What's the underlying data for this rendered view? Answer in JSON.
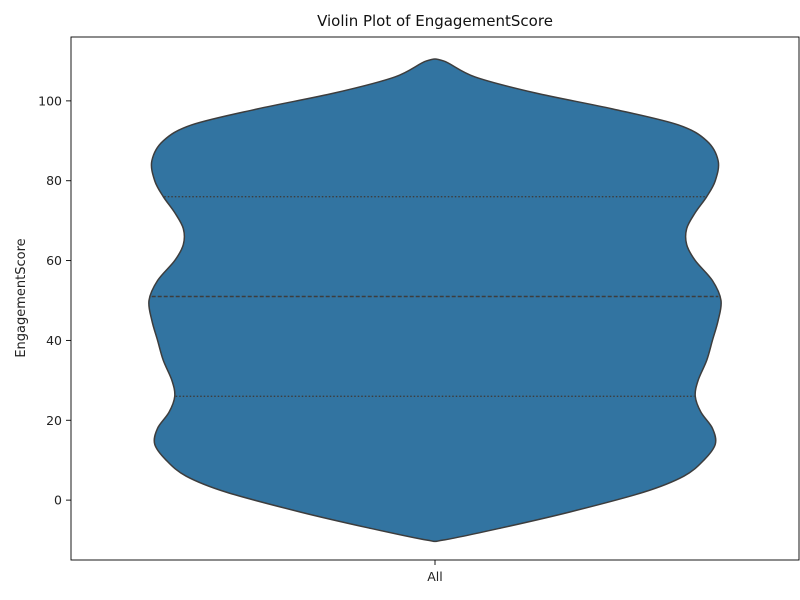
{
  "chart_data": {
    "type": "violin",
    "title": "Violin Plot of EngagementScore",
    "xlabel": "",
    "ylabel": "EngagementScore",
    "categories": [
      "All"
    ],
    "ylim": [
      -15,
      116
    ],
    "yticks": [
      0,
      20,
      40,
      60,
      80,
      100
    ],
    "grid": false,
    "legend": "none",
    "color": "#3274a1",
    "edge_color": "#3d3d3d",
    "violin": {
      "min": -10,
      "max": 110,
      "quartiles": {
        "q1": 26,
        "median": 51,
        "q3": 76
      },
      "density_profile": [
        [
          -10,
          0.03
        ],
        [
          -7,
          0.23
        ],
        [
          -3,
          0.47
        ],
        [
          2,
          0.73
        ],
        [
          6,
          0.87
        ],
        [
          10,
          0.94
        ],
        [
          14,
          0.98
        ],
        [
          18,
          0.97
        ],
        [
          22,
          0.93
        ],
        [
          26,
          0.91
        ],
        [
          30,
          0.92
        ],
        [
          35,
          0.95
        ],
        [
          40,
          0.97
        ],
        [
          45,
          0.99
        ],
        [
          50,
          1.0
        ],
        [
          55,
          0.97
        ],
        [
          60,
          0.91
        ],
        [
          64,
          0.88
        ],
        [
          68,
          0.88
        ],
        [
          72,
          0.91
        ],
        [
          76,
          0.95
        ],
        [
          80,
          0.98
        ],
        [
          85,
          0.99
        ],
        [
          90,
          0.95
        ],
        [
          94,
          0.85
        ],
        [
          98,
          0.62
        ],
        [
          102,
          0.35
        ],
        [
          106,
          0.14
        ],
        [
          110,
          0.03
        ]
      ]
    }
  }
}
